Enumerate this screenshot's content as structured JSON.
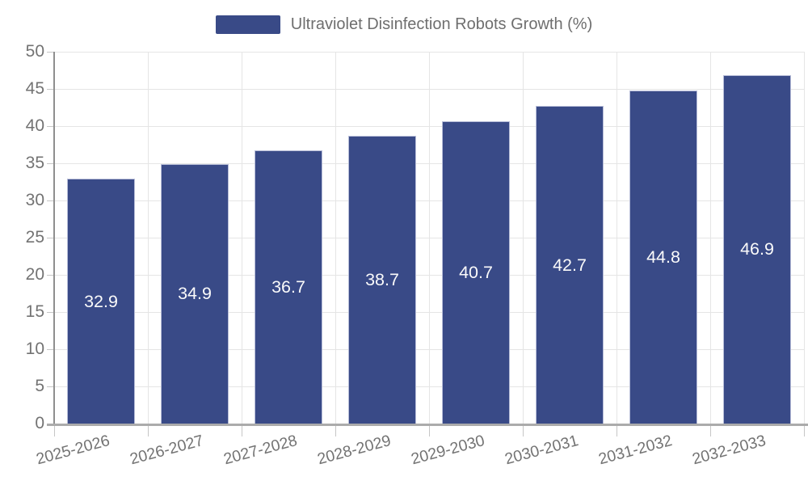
{
  "legend": {
    "label": "Ultraviolet Disinfection Robots Growth (%)"
  },
  "chart_data": {
    "type": "bar",
    "title": "Ultraviolet Disinfection Robots Growth (%)",
    "categories": [
      "2025-2026",
      "2026-2027",
      "2027-2028",
      "2028-2029",
      "2029-2030",
      "2030-2031",
      "2031-2032",
      "2032-2033"
    ],
    "values": [
      32.9,
      34.9,
      36.7,
      38.7,
      40.7,
      42.7,
      44.8,
      46.9
    ],
    "value_labels": [
      "32.9",
      "34.9",
      "36.7",
      "38.7",
      "40.7",
      "42.7",
      "44.8",
      "46.9"
    ],
    "ylim": [
      0,
      50
    ],
    "ytick_step": 5,
    "ytick_labels": [
      "0",
      "5",
      "10",
      "15",
      "20",
      "25",
      "30",
      "35",
      "40",
      "45",
      "50"
    ],
    "grid": true,
    "legend_position": "top",
    "colors": {
      "bar": "#394a87",
      "bar_border": "#b7bdd8",
      "value_label": "#fafafa",
      "grid": "#e5e5e5",
      "axis_y": "#8f8f8f",
      "axis_x": "#ababab",
      "tick": "#c6c6c6",
      "tick_label": "#737373",
      "legend_text": "#6e6e6e"
    }
  }
}
